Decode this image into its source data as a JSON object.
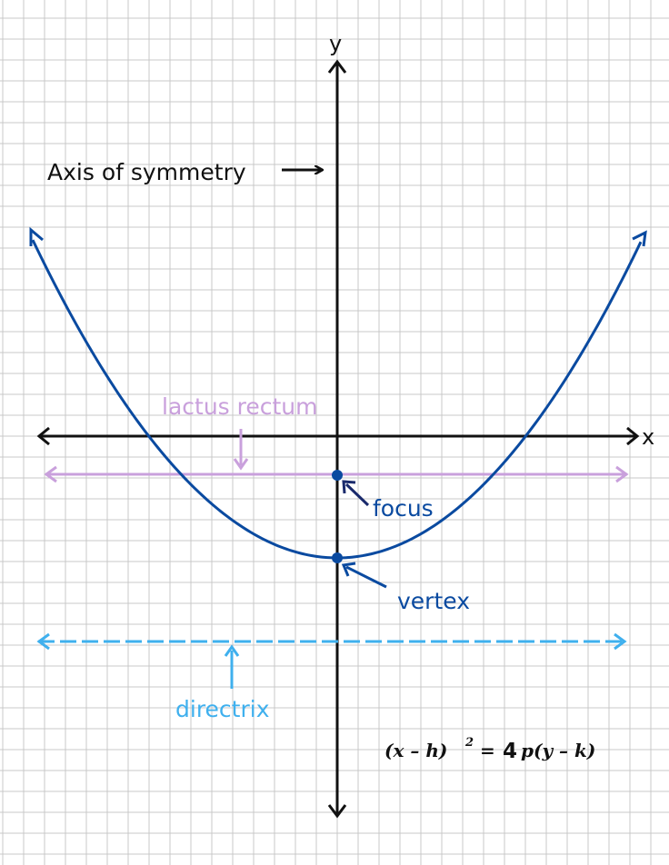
{
  "axes": {
    "x_label": "x",
    "y_label": "y"
  },
  "labels": {
    "axis_of_symmetry": "Axis of symmetry",
    "latus_rectum": "lactus rectum",
    "focus": "focus",
    "vertex": "vertex",
    "directrix": "directrix"
  },
  "formula": {
    "lhs": "(x – h)",
    "exp": "2",
    "eq": "=",
    "four": "4",
    "rhs": "p(y – k)"
  },
  "colors": {
    "grid": "#c8c8c8",
    "axes": "#111111",
    "parabola": "#0a4aa0",
    "latus_rectum": "#c9a0dc",
    "directrix": "#3fb0ee",
    "annotation_focus": "#1a2a6c",
    "annotation_vertex": "#0a4aa0",
    "text_dark": "#111111"
  }
}
